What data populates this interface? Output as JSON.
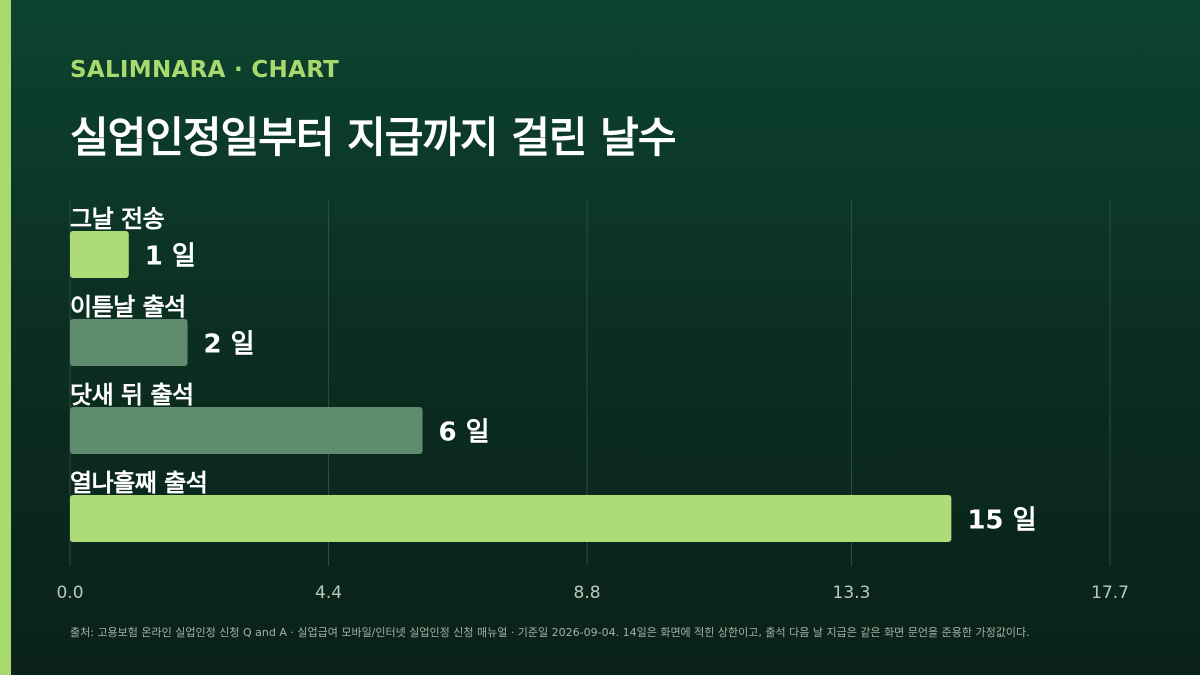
{
  "brand": "SALIMNARA · CHART",
  "title": "실업인정일부터 지급까지 걸린 날수",
  "footnote": "출처: 고용보험 온라인 실업인정 신청 Q and A · 실업급여 모바일/인터넷 실업인정 신청 매뉴얼 · 기준일 2026-09-04. 14일은 화면에 적힌 상한이고, 출석 다음 날 지급은 같은 화면 문언을 준용한 가정값이다.",
  "colors": {
    "highlight": "#acdb78",
    "muted": "#5f8b6f",
    "grid": "#2b4f3d",
    "tick": "#b9c9bd"
  },
  "chart_data": {
    "type": "bar",
    "orientation": "horizontal",
    "categories": [
      "그날 전송",
      "이튿날 출석",
      "닷새 뒤 출석",
      "열나흘째 출석"
    ],
    "values": [
      1,
      2,
      6,
      15
    ],
    "value_labels": [
      "1 일",
      "2 일",
      "6 일",
      "15 일"
    ],
    "highlighted": [
      true,
      false,
      false,
      true
    ],
    "xlim": [
      0,
      17.7
    ],
    "xticks": [
      0,
      4.4,
      8.8,
      13.3,
      17.7
    ],
    "xtick_labels": [
      "0.0",
      "4.4",
      "8.8",
      "13.3",
      "17.7"
    ],
    "grid": true
  }
}
